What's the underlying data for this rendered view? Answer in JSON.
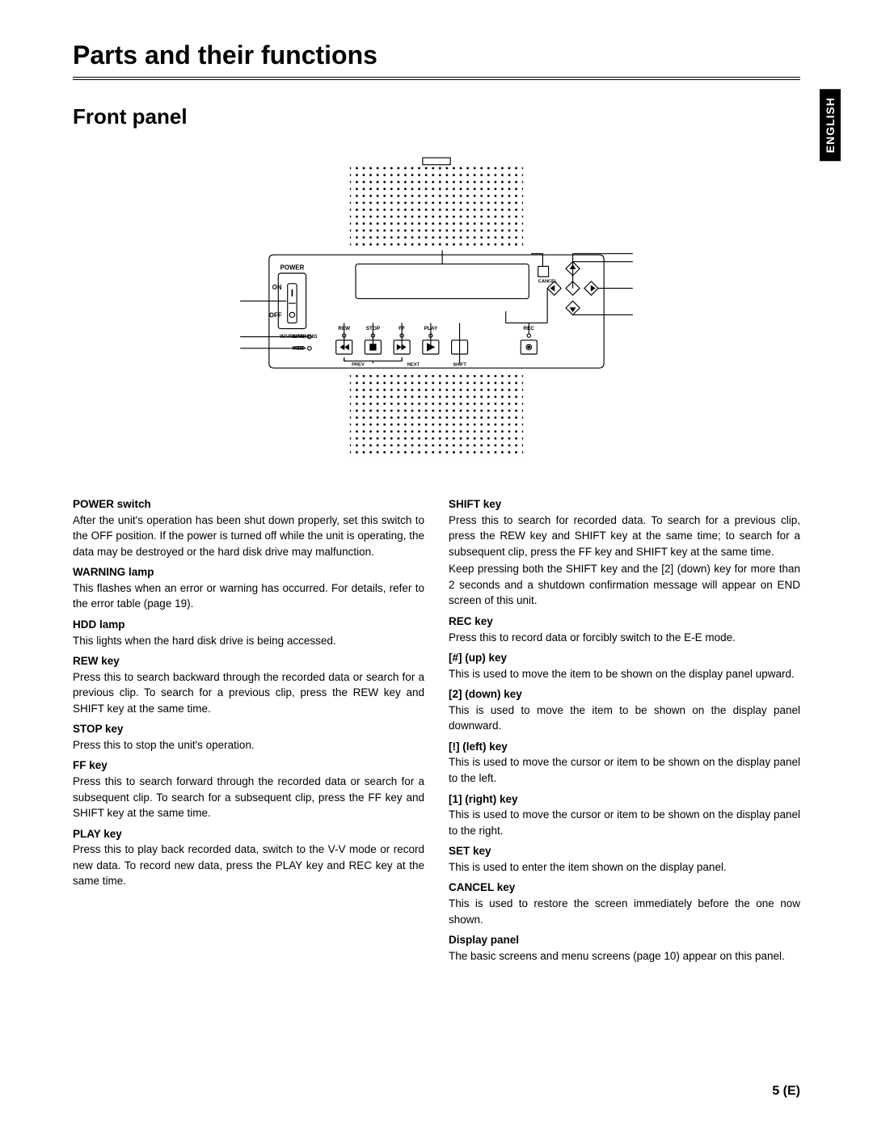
{
  "page": {
    "title": "Parts and their functions",
    "subtitle": "Front panel",
    "lang_tab": "ENGLISH",
    "page_number": "5 (E)"
  },
  "diagram": {
    "labels": {
      "power": "POWER",
      "on": "ON",
      "off": "OFF",
      "warning": "WARNING",
      "hdd": "HDD",
      "rew": "REW",
      "stop": "STOP",
      "ff": "FF",
      "play": "PLAY",
      "rec": "REC",
      "prev": "PREV",
      "next": "NEXT",
      "shift": "SHIFT",
      "cancel": "CANCEL"
    },
    "style": {
      "stroke": "#000000",
      "fill": "#ffffff",
      "label_fontsize": 5.5,
      "tiny_fontsize": 4
    }
  },
  "left_column": [
    {
      "title": "POWER switch",
      "body": "After the unit's operation has been shut down properly, set this switch to the OFF position. If the power is turned off while the unit is operating, the data may be destroyed or the hard disk drive may malfunction."
    },
    {
      "title": "WARNING lamp",
      "body": "This flashes when an error or warning has occurred. For details, refer to the error table (page 19)."
    },
    {
      "title": "HDD lamp",
      "body": "This lights when the hard disk drive is being accessed."
    },
    {
      "title": "REW key",
      "body": "Press this to search backward through the recorded data or search for a previous clip. To search for a previous clip, press the REW key and SHIFT key at the same time."
    },
    {
      "title": "STOP key",
      "body": "Press this to stop the unit's operation."
    },
    {
      "title": "FF key",
      "body": "Press this to search forward through the recorded data or search for a subsequent clip. To search for a subsequent clip, press the FF key and SHIFT key at the same time."
    },
    {
      "title": "PLAY key",
      "body": "Press this to play back recorded data, switch to the V-V mode or record new data. To record new data, press the PLAY key and REC key at the same time."
    }
  ],
  "right_column": [
    {
      "title": "SHIFT key",
      "body": "Press this to search for recorded data. To search for a previous clip, press the REW key and SHIFT key at the same time; to search for a subsequent clip, press the FF key and SHIFT key at the same time.\nKeep pressing both the SHIFT key and the [2] (down) key for more than 2 seconds and a shutdown confirmation message will appear on END screen of this unit."
    },
    {
      "title": "REC key",
      "body": "Press this to record data or forcibly switch to the E-E mode."
    },
    {
      "title": "[#] (up) key",
      "body": "This is used to move the item to be shown on the display panel upward."
    },
    {
      "title": "[2] (down) key",
      "body": "This is used to move the item to be shown on the display panel downward."
    },
    {
      "title": "[!] (left) key",
      "body": "This is used to move the cursor or item to be shown on the display panel to the left."
    },
    {
      "title": "[1] (right) key",
      "body": "This is used to move the cursor or item to be shown on the display panel to the right."
    },
    {
      "title": "SET key",
      "body": "This is used to enter the item shown on the display panel."
    },
    {
      "title": "CANCEL key",
      "body": "This is used to restore the screen immediately before the one now shown."
    },
    {
      "title": "Display panel",
      "body": "The basic screens and menu screens (page 10) appear on this panel."
    }
  ]
}
